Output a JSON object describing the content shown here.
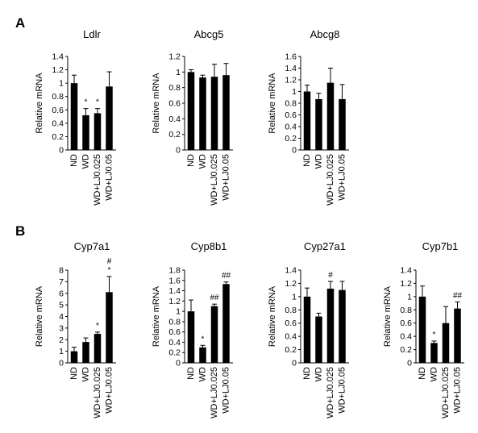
{
  "panels": [
    {
      "label": "A"
    },
    {
      "label": "B"
    }
  ],
  "chart_data": [
    {
      "type": "bar",
      "panel": "A",
      "title": "Ldlr",
      "ylabel": "Relative mRNA",
      "categories": [
        "ND",
        "WD",
        "WD+LJ0.025",
        "WD+LJ0.05"
      ],
      "values": [
        1.0,
        0.52,
        0.55,
        0.95
      ],
      "errors": [
        0.12,
        0.1,
        0.07,
        0.22
      ],
      "annotations": [
        "",
        "*",
        "*",
        ""
      ],
      "ylim": [
        0,
        1.4
      ],
      "yticks": [
        "0",
        "0.2",
        "0.4",
        "0.6",
        "0.8",
        "1",
        "1.2",
        "1.4"
      ]
    },
    {
      "type": "bar",
      "panel": "A",
      "title": "Abcg5",
      "ylabel": "Relative mRNA",
      "categories": [
        "ND",
        "WD",
        "WD+LJ0.025",
        "WD+LJ0.05"
      ],
      "values": [
        1.0,
        0.93,
        0.94,
        0.96
      ],
      "errors": [
        0.03,
        0.03,
        0.16,
        0.15
      ],
      "annotations": [
        "",
        "",
        "",
        ""
      ],
      "ylim": [
        0,
        1.2
      ],
      "yticks": [
        "0",
        "0.2",
        "0.4",
        "0.6",
        "0.8",
        "1",
        "1.2"
      ]
    },
    {
      "type": "bar",
      "panel": "A",
      "title": "Abcg8",
      "ylabel": "Relative mRNA",
      "categories": [
        "ND",
        "WD",
        "WD+LJ0.025",
        "WD+LJ0.05"
      ],
      "values": [
        1.0,
        0.87,
        1.15,
        0.87
      ],
      "errors": [
        0.11,
        0.1,
        0.25,
        0.25
      ],
      "annotations": [
        "",
        "",
        "",
        ""
      ],
      "ylim": [
        0,
        1.6
      ],
      "yticks": [
        "0",
        "0.2",
        "0.4",
        "0.6",
        "0.8",
        "1",
        "1.2",
        "1.4",
        "1.6"
      ]
    },
    {
      "type": "bar",
      "panel": "B",
      "title": "Cyp7a1",
      "ylabel": "Relative mRNA",
      "categories": [
        "ND",
        "WD",
        "WD+LJ0.025",
        "WD+LJ0.05"
      ],
      "values": [
        1.0,
        1.8,
        2.5,
        6.1
      ],
      "errors": [
        0.35,
        0.35,
        0.15,
        1.35
      ],
      "annotations": [
        "",
        "",
        "*",
        "#\n*"
      ],
      "ylim": [
        0,
        8
      ],
      "yticks": [
        "0",
        "1",
        "2",
        "3",
        "4",
        "5",
        "6",
        "7",
        "8"
      ]
    },
    {
      "type": "bar",
      "panel": "B",
      "title": "Cyp8b1",
      "ylabel": "Relative mRNA",
      "categories": [
        "ND",
        "WD",
        "WD+LJ0.025",
        "WD+LJ0.05"
      ],
      "values": [
        1.0,
        0.3,
        1.1,
        1.53
      ],
      "errors": [
        0.22,
        0.04,
        0.04,
        0.04
      ],
      "annotations": [
        "",
        "*",
        "##",
        "##"
      ],
      "ylim": [
        0,
        1.8
      ],
      "yticks": [
        "0",
        "0.2",
        "0.4",
        "0.6",
        "0.8",
        "1",
        "1.2",
        "1.4",
        "1.6",
        "1.8"
      ]
    },
    {
      "type": "bar",
      "panel": "B",
      "title": "Cyp27a1",
      "ylabel": "Relative mRNA",
      "categories": [
        "ND",
        "WD",
        "WD+LJ0.025",
        "WD+LJ0.05"
      ],
      "values": [
        1.0,
        0.7,
        1.12,
        1.1
      ],
      "errors": [
        0.13,
        0.05,
        0.11,
        0.13
      ],
      "annotations": [
        "",
        "",
        "#",
        ""
      ],
      "ylim": [
        0,
        1.4
      ],
      "yticks": [
        "0",
        "0.2",
        "0.4",
        "0.6",
        "0.8",
        "1",
        "1.2",
        "1.4"
      ]
    },
    {
      "type": "bar",
      "panel": "B",
      "title": "Cyp7b1",
      "ylabel": "Relative mRNA",
      "categories": [
        "ND",
        "WD",
        "WD+LJ0.025",
        "WD+LJ0.05"
      ],
      "values": [
        1.0,
        0.3,
        0.6,
        0.82
      ],
      "errors": [
        0.16,
        0.03,
        0.25,
        0.1
      ],
      "annotations": [
        "",
        "*",
        "",
        "##"
      ],
      "ylim": [
        0,
        1.4
      ],
      "yticks": [
        "0",
        "0.2",
        "0.4",
        "0.6",
        "0.8",
        "1",
        "1.2",
        "1.4"
      ]
    }
  ]
}
